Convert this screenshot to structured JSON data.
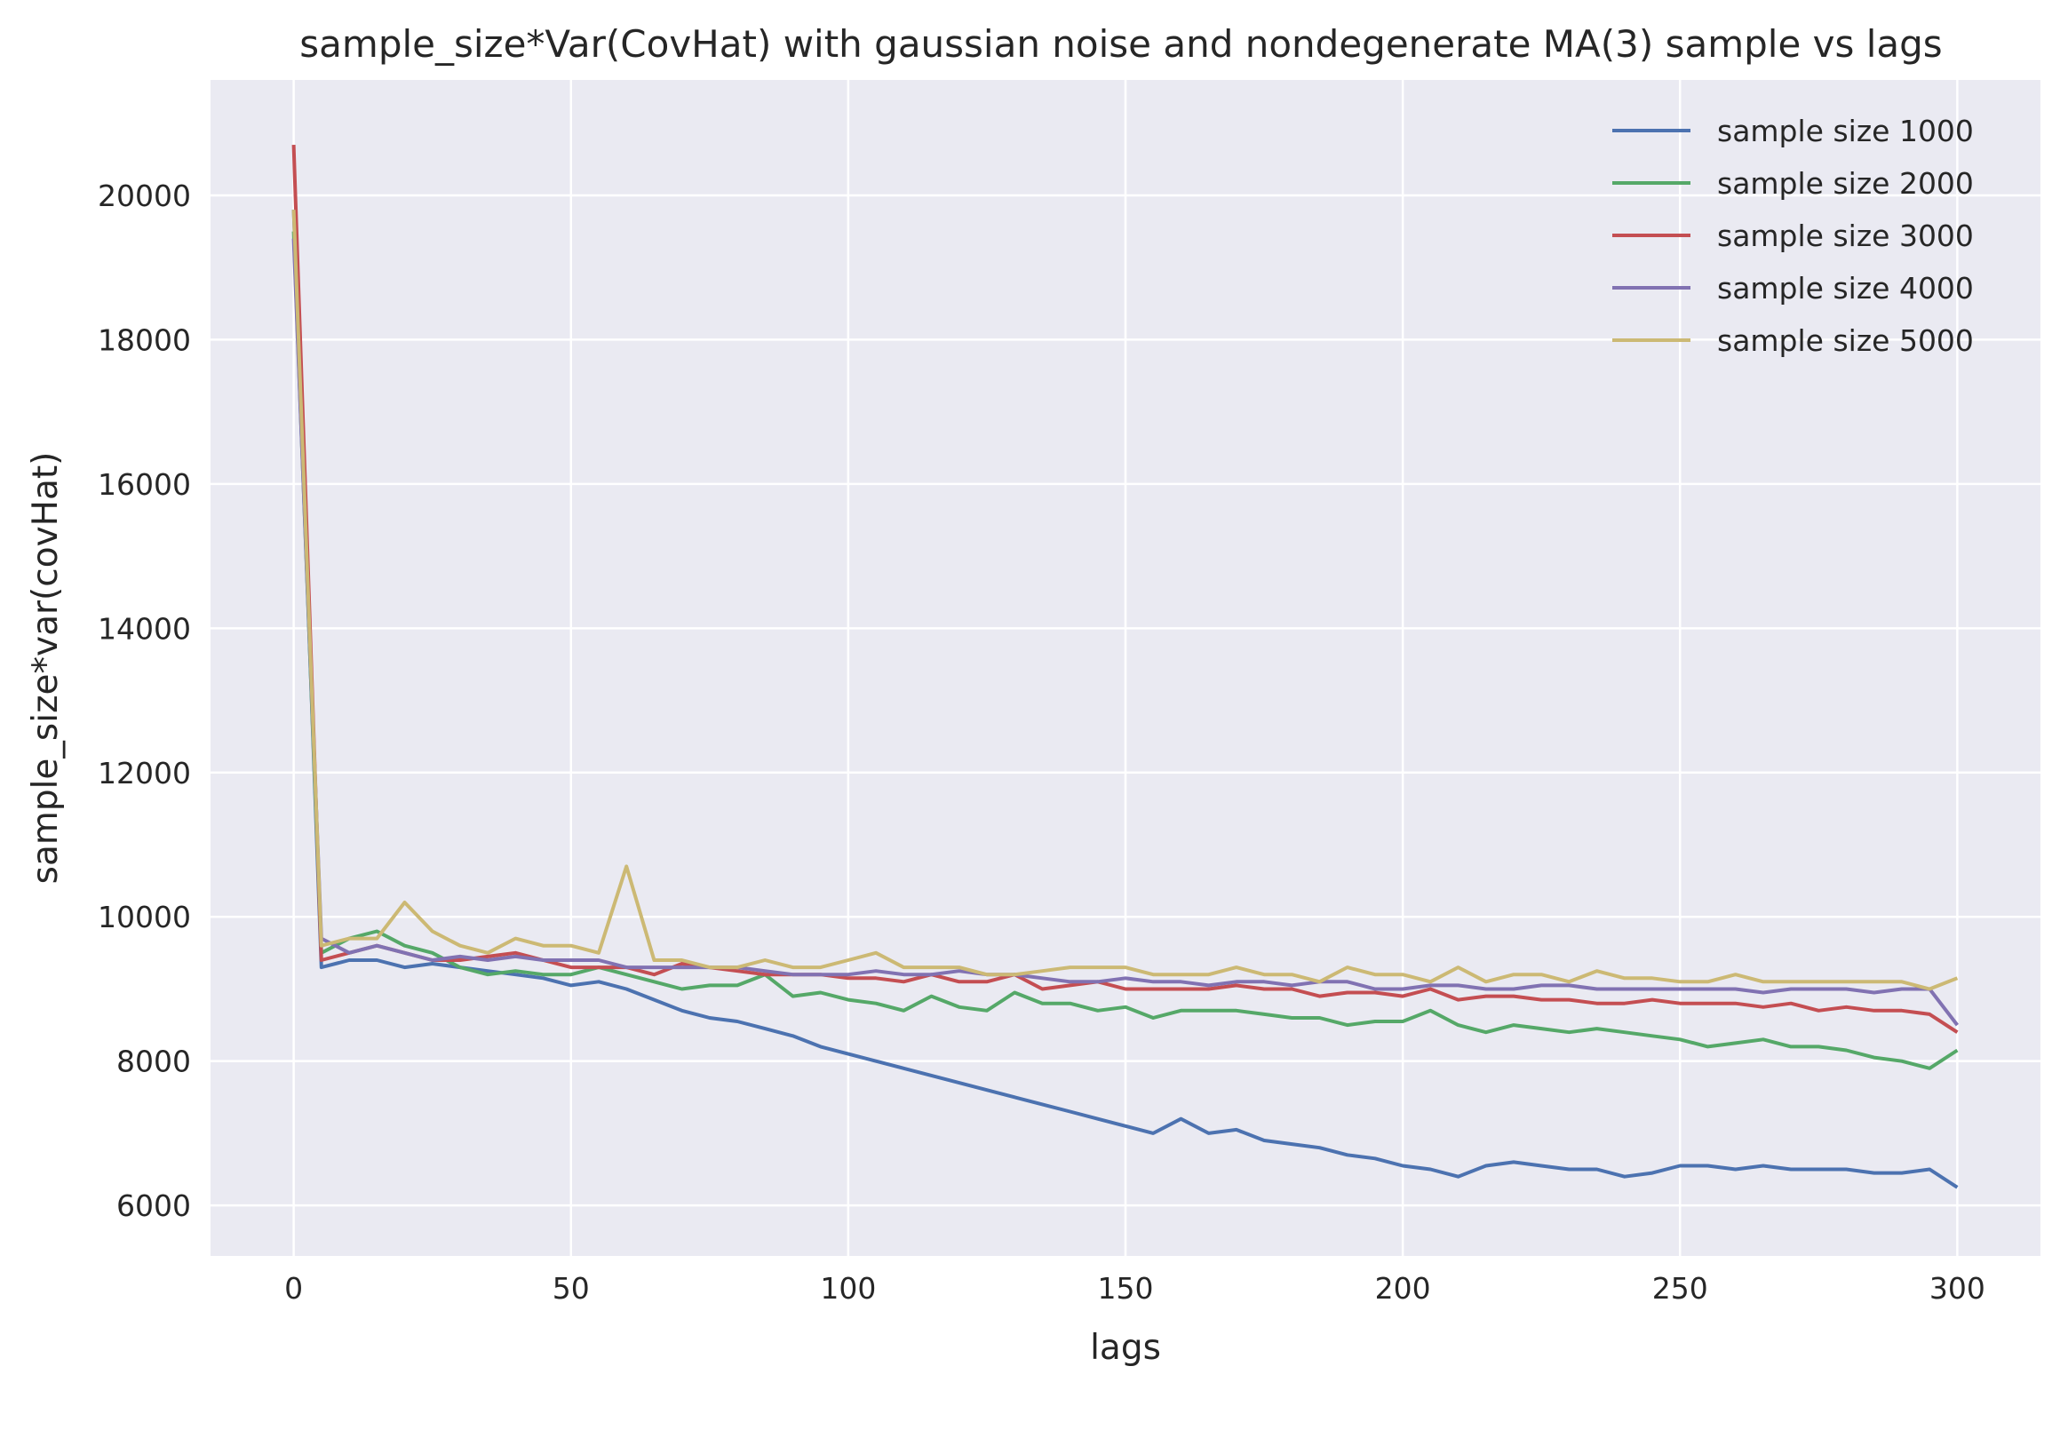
{
  "chart_data": {
    "type": "line",
    "title": "sample_size*Var(CovHat) with gaussian noise and nondegenerate MA(3) sample vs lags",
    "xlabel": "lags",
    "ylabel": "sample_size*var(covHat)",
    "xlim": [
      -15,
      315
    ],
    "ylim": [
      5300,
      21600
    ],
    "xticks": [
      0,
      50,
      100,
      150,
      200,
      250,
      300
    ],
    "yticks": [
      6000,
      8000,
      10000,
      12000,
      14000,
      16000,
      18000,
      20000
    ],
    "xtick_labels": [
      "0",
      "50",
      "100",
      "150",
      "200",
      "250",
      "300"
    ],
    "ytick_labels": [
      "6000",
      "8000",
      "10000",
      "12000",
      "14000",
      "16000",
      "18000",
      "20000"
    ],
    "grid": true,
    "legend_position": "top-right",
    "lag_step": 5,
    "series": [
      {
        "name": "sample size 1000",
        "color": "#4c72b0",
        "values": [
          19800,
          9300,
          9400,
          9400,
          9300,
          9350,
          9300,
          9250,
          9200,
          9150,
          9050,
          9100,
          9000,
          8850,
          8700,
          8600,
          8550,
          8450,
          8350,
          8200,
          8100,
          8000,
          7900,
          7800,
          7700,
          7600,
          7500,
          7400,
          7300,
          7200,
          7100,
          7000,
          7200,
          7000,
          7050,
          6900,
          6850,
          6800,
          6700,
          6650,
          6550,
          6500,
          6400,
          6550,
          6600,
          6550,
          6500,
          6500,
          6400,
          6450,
          6550,
          6550,
          6500,
          6550,
          6500,
          6500,
          6500,
          6450,
          6450,
          6500,
          6250
        ]
      },
      {
        "name": "sample size 2000",
        "color": "#55a868",
        "values": [
          19500,
          9500,
          9700,
          9800,
          9600,
          9500,
          9300,
          9200,
          9250,
          9200,
          9200,
          9300,
          9200,
          9100,
          9000,
          9050,
          9050,
          9200,
          8900,
          8950,
          8850,
          8800,
          8700,
          8900,
          8750,
          8700,
          8950,
          8800,
          8800,
          8700,
          8750,
          8600,
          8700,
          8700,
          8700,
          8650,
          8600,
          8600,
          8500,
          8550,
          8550,
          8700,
          8500,
          8400,
          8500,
          8450,
          8400,
          8450,
          8400,
          8350,
          8300,
          8200,
          8250,
          8300,
          8200,
          8200,
          8150,
          8050,
          8000,
          7900,
          8150
        ]
      },
      {
        "name": "sample size 3000",
        "color": "#c44e52",
        "values": [
          20700,
          9400,
          9500,
          9600,
          9500,
          9400,
          9400,
          9450,
          9500,
          9400,
          9300,
          9300,
          9300,
          9200,
          9350,
          9300,
          9250,
          9200,
          9200,
          9200,
          9150,
          9150,
          9100,
          9200,
          9100,
          9100,
          9200,
          9000,
          9050,
          9100,
          9000,
          9000,
          9000,
          9000,
          9050,
          9000,
          9000,
          8900,
          8950,
          8950,
          8900,
          9000,
          8850,
          8900,
          8900,
          8850,
          8850,
          8800,
          8800,
          8850,
          8800,
          8800,
          8800,
          8750,
          8800,
          8700,
          8750,
          8700,
          8700,
          8650,
          8400
        ]
      },
      {
        "name": "sample size 4000",
        "color": "#8172b2",
        "values": [
          19400,
          9700,
          9500,
          9600,
          9500,
          9400,
          9450,
          9400,
          9450,
          9400,
          9400,
          9400,
          9300,
          9300,
          9300,
          9300,
          9300,
          9250,
          9200,
          9200,
          9200,
          9250,
          9200,
          9200,
          9250,
          9200,
          9200,
          9150,
          9100,
          9100,
          9150,
          9100,
          9100,
          9050,
          9100,
          9100,
          9050,
          9100,
          9100,
          9000,
          9000,
          9050,
          9050,
          9000,
          9000,
          9050,
          9050,
          9000,
          9000,
          9000,
          9000,
          9000,
          9000,
          8950,
          9000,
          9000,
          9000,
          8950,
          9000,
          9000,
          8500
        ]
      },
      {
        "name": "sample size 5000",
        "color": "#ccb974",
        "values": [
          19800,
          9600,
          9700,
          9700,
          10200,
          9800,
          9600,
          9500,
          9700,
          9600,
          9600,
          9500,
          10700,
          9400,
          9400,
          9300,
          9300,
          9400,
          9300,
          9300,
          9400,
          9500,
          9300,
          9300,
          9300,
          9200,
          9200,
          9250,
          9300,
          9300,
          9300,
          9200,
          9200,
          9200,
          9300,
          9200,
          9200,
          9100,
          9300,
          9200,
          9200,
          9100,
          9300,
          9100,
          9200,
          9200,
          9100,
          9250,
          9150,
          9150,
          9100,
          9100,
          9200,
          9100,
          9100,
          9100,
          9100,
          9100,
          9100,
          9000,
          9150
        ]
      }
    ]
  }
}
